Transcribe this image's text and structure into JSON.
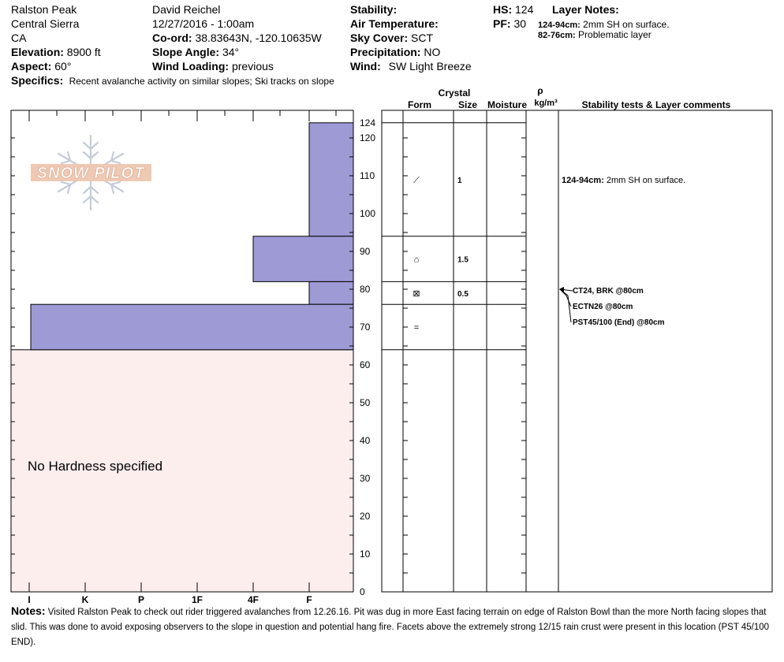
{
  "header": {
    "location": "Ralston Peak",
    "range": "Central Sierra",
    "state": "CA",
    "elevation_label": "Elevation:",
    "elevation_value": "8900 ft",
    "aspect_label": "Aspect:",
    "aspect_value": "60°",
    "specifics_label": "Specifics:",
    "specifics_value": "Recent avalanche activity on similar slopes; Ski tracks on slope",
    "observer": "David Reichel",
    "datetime": "12/27/2016 - 1:00am",
    "coord_label": "Co-ord:",
    "coord_value": "38.83643N, -120.10635W",
    "slope_label": "Slope Angle:",
    "slope_value": "34°",
    "wind_loading_label": "Wind Loading:",
    "wind_loading_value": "previous",
    "stability_label": "Stability:",
    "air_temp_label": "Air Temperature:",
    "sky_label": "Sky Cover:",
    "sky_value": "SCT",
    "precip_label": "Precipitation:",
    "precip_value": "NO",
    "wind_label": "Wind:",
    "wind_value": "SW Light Breeze",
    "hs_label": "HS:",
    "hs_value": "124",
    "pf_label": "PF:",
    "pf_value": "30",
    "layer_notes_label": "Layer Notes:",
    "layer_notes": [
      {
        "range": "124-94cm:",
        "text": "2mm SH on surface."
      },
      {
        "range": "82-76cm:",
        "text": "Problematic layer"
      }
    ]
  },
  "logo_text": "SNOW PILOT",
  "no_hardness_text": "No Hardness specified",
  "table_headers": {
    "crystal": "Crystal",
    "form": "Form",
    "size": "Size",
    "moisture": "Moisture",
    "rho": "ρ",
    "density_unit": "kg/m³",
    "comments": "Stability tests & Layer comments"
  },
  "chart_data": {
    "type": "bar",
    "title": "",
    "xlabel": "",
    "ylabel": "",
    "hardness_scale": [
      "I",
      "K",
      "P",
      "1F",
      "4F",
      "F"
    ],
    "hardness_plot_order": [
      "I",
      "K",
      "P",
      "1F",
      "4F",
      "F"
    ],
    "ylim": [
      0,
      124
    ],
    "yticks": [
      0,
      10,
      20,
      30,
      40,
      50,
      60,
      70,
      80,
      90,
      100,
      110,
      120
    ],
    "snow_height": 124,
    "layers": [
      {
        "top": 124,
        "bottom": 94,
        "hardness": "F",
        "form_symbol": "⟋",
        "size": "1"
      },
      {
        "top": 94,
        "bottom": 82,
        "hardness": "4F",
        "form_symbol": "⌂",
        "size": "1.5"
      },
      {
        "top": 82,
        "bottom": 76,
        "hardness": "F",
        "form_symbol": "⊠",
        "size": "0.5"
      },
      {
        "top": 76,
        "bottom": 64,
        "hardness": "I",
        "form_symbol": "=",
        "size": ""
      }
    ],
    "unspecified_below": 64,
    "layer_comments": [
      {
        "range": "124-94cm:",
        "text": "2mm SH on surface.",
        "depth": 109
      }
    ],
    "stability_tests": [
      {
        "text": "CT24, BRK @80cm",
        "depth": 80
      },
      {
        "text": "ECTN26 @80cm",
        "depth": 80
      },
      {
        "text": "PST45/100 (End) @80cm",
        "depth": 80
      }
    ],
    "colors": {
      "bar": "#9e9ad6",
      "unspecified": "#fdeeee",
      "axis": "#000000"
    }
  },
  "notes_label": "Notes:",
  "notes_text": "Visited Ralston Peak to check out rider triggered avalanches from 12.26.16. Pit was dug in more East facing terrain on edge of Ralston Bowl than the more North facing slopes that slid. This was done to avoid exposing observers to the slope in question and potential hang fire. Facets above the extremely strong 12/15 rain crust were present in this location (PST 45/100 END)."
}
